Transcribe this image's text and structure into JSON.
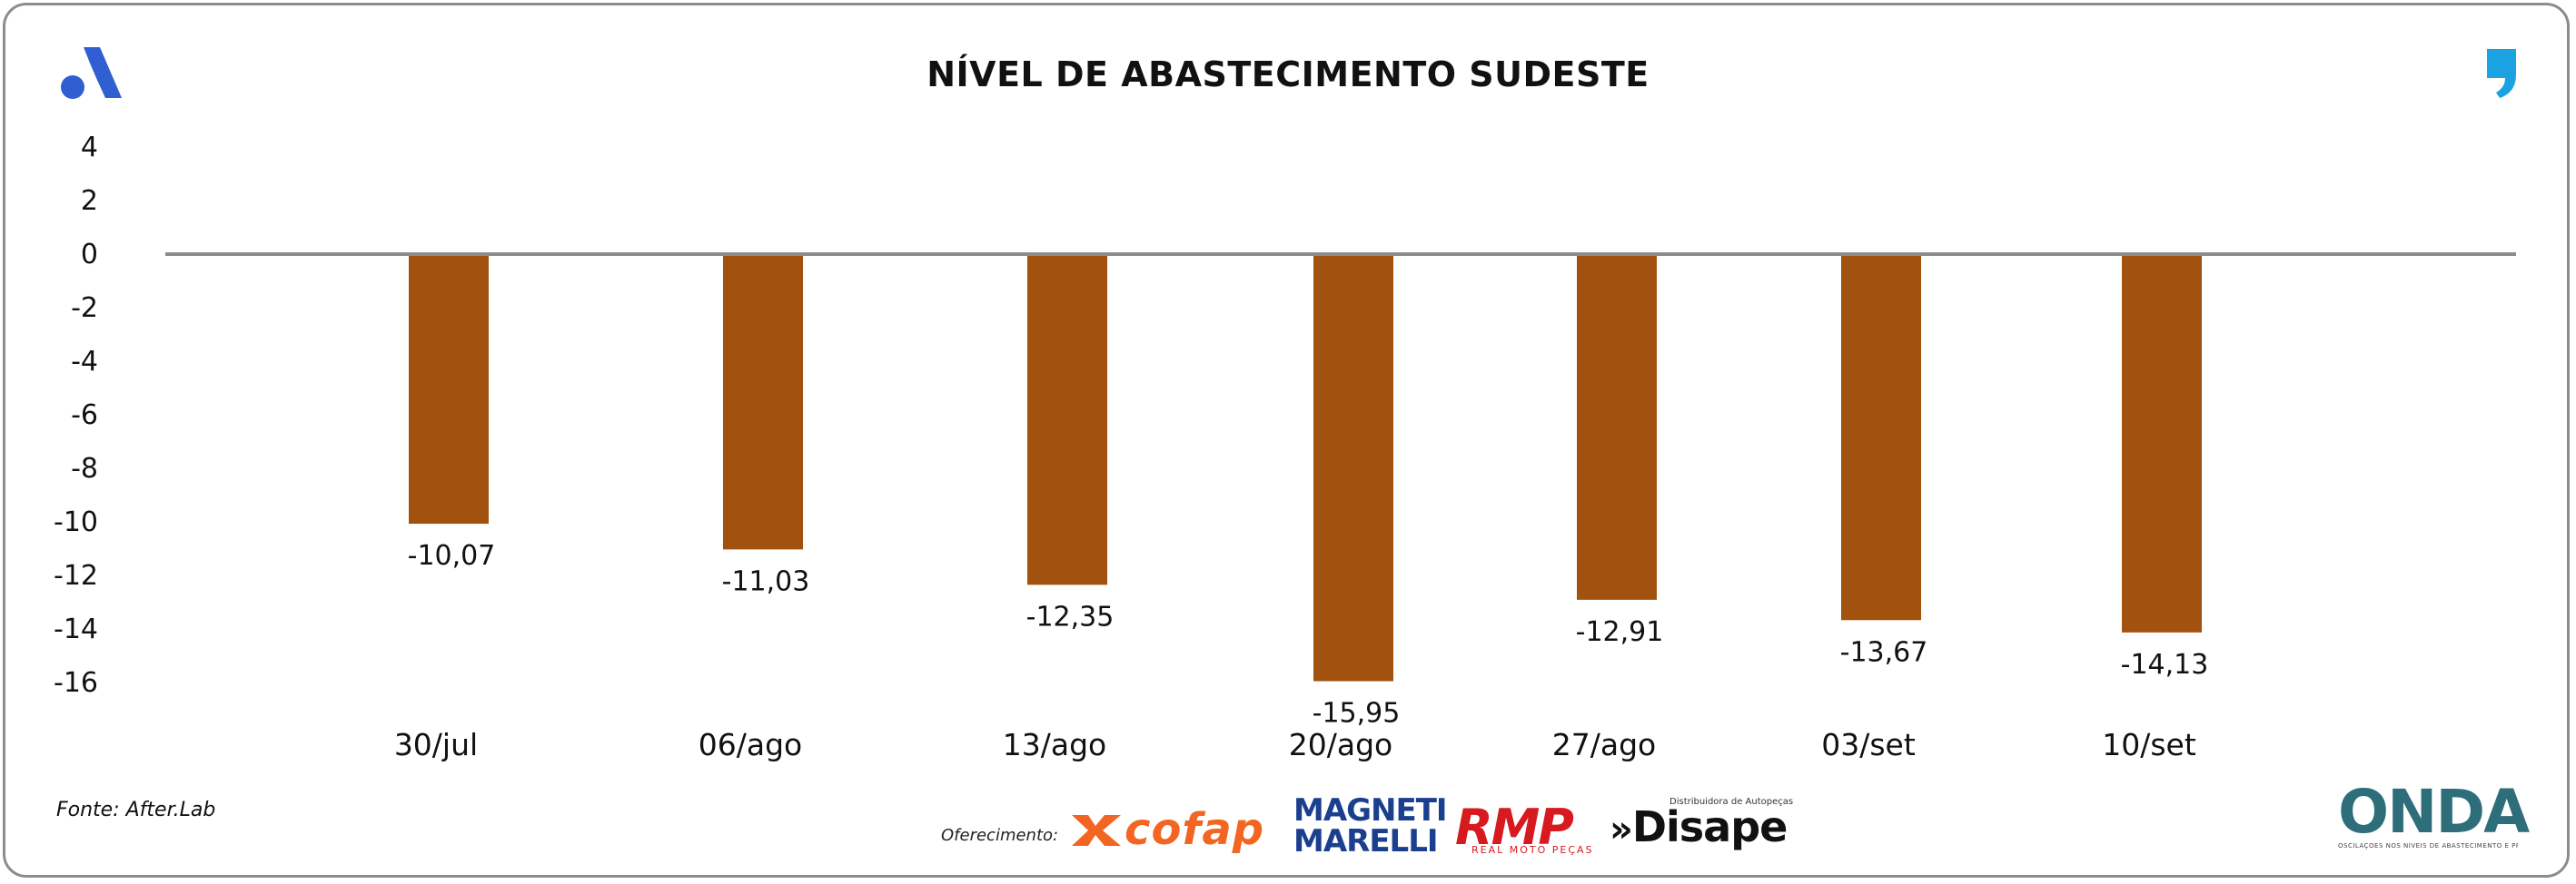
{
  "chart_data": {
    "type": "bar",
    "title": "NÍVEL DE ABASTECIMENTO SUDESTE",
    "categories": [
      "30/jul",
      "06/ago",
      "13/ago",
      "20/ago",
      "27/ago",
      "03/set",
      "10/set"
    ],
    "values": [
      -10.07,
      -11.03,
      -12.35,
      -15.95,
      -12.91,
      -13.67,
      -14.13
    ],
    "data_labels": [
      "-10,07",
      "-11,03",
      "-12,35",
      "-15,95",
      "-12,91",
      "-13,67",
      "-14,13"
    ],
    "xlabel": "",
    "ylabel": "",
    "ylim": [
      -16,
      4
    ],
    "yticks": [
      "4",
      "2",
      "0",
      "-2",
      "-4",
      "-6",
      "-8",
      "-10",
      "-12",
      "-14",
      "-16"
    ],
    "ytick_values": [
      4,
      2,
      0,
      -2,
      -4,
      -6,
      -8,
      -10,
      -12,
      -14,
      -16
    ],
    "bar_color": "#a0520e",
    "zero_line_color": "#8c8c8c",
    "grid": false,
    "legend": "none"
  },
  "source": "Fonte: After.Lab",
  "sponsor_label": "Oferecimento:",
  "sponsors": {
    "cofap": "cofap",
    "magneti_marelli": "MAGNETI MARELLI",
    "rmp": "RMP",
    "rmp_sub": "REAL MOTO PEÇAS",
    "disape": "Disape",
    "disape_sub": "Distribuidora de Autopeças"
  },
  "onda": {
    "name": "ONDA",
    "tagline": "OSCILAÇÕES NOS NÍVEIS DE ABASTECIMENTO E PREÇO"
  },
  "colors": {
    "accent_blue": "#2f5fd0",
    "quote_blue": "#1aa3e0"
  },
  "icons": {
    "left_logo": "afterlab-logo-icon",
    "right_logo": "quote-mark-icon"
  }
}
